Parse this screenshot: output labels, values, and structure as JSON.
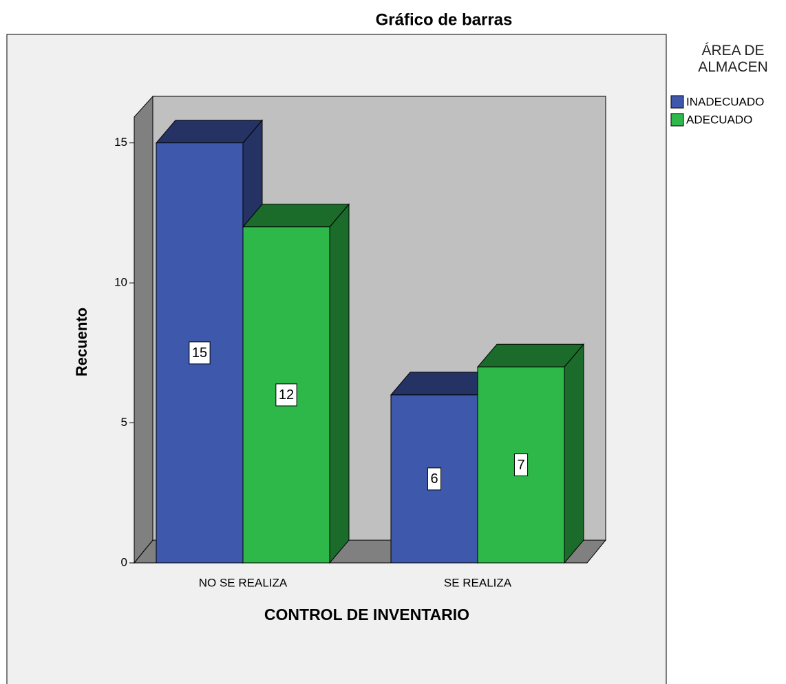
{
  "chart_data": {
    "type": "bar3d",
    "title": "Gráfico de barras",
    "categories": [
      "NO SE REALIZA",
      "SE REALIZA"
    ],
    "series": [
      {
        "name": "INADECUADO",
        "color": "#3e58ac",
        "values": [
          15,
          6
        ]
      },
      {
        "name": "ADECUADO",
        "color": "#2eb84a",
        "values": [
          12,
          7
        ]
      }
    ],
    "x_label": "CONTROL DE INVENTARIO",
    "y_label": "Recuento",
    "legend_title": "ÁREA DE ALMACEN",
    "legend": "right",
    "ylim": [
      0,
      16
    ],
    "yticks": [
      0,
      5,
      10,
      15
    ]
  }
}
